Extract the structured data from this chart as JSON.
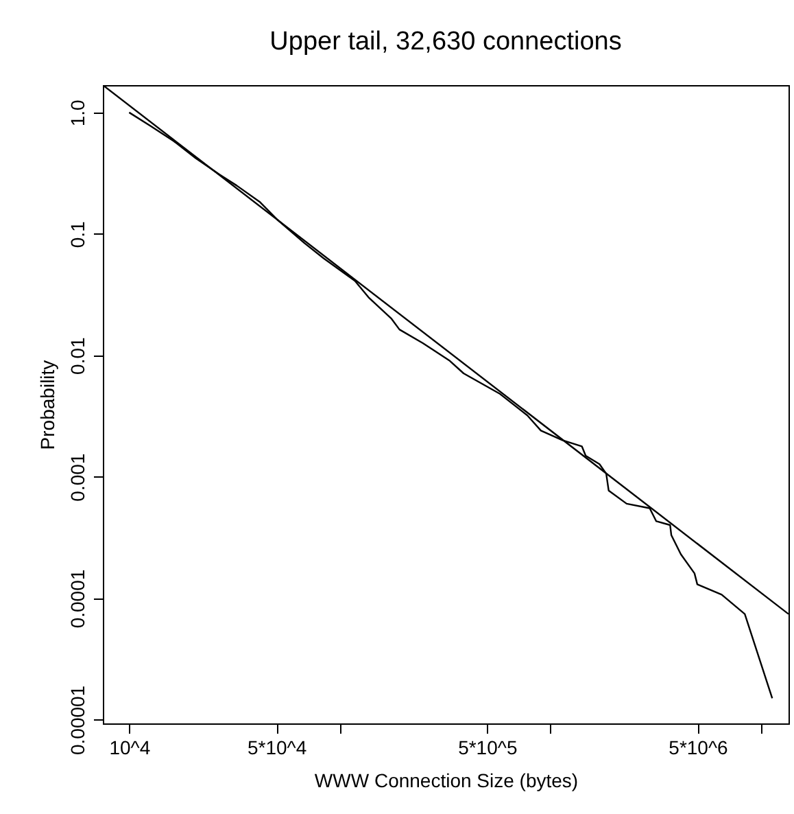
{
  "chart_data": {
    "type": "line",
    "title": "Upper tail, 32,630 connections",
    "xlabel": "WWW Connection Size (bytes)",
    "ylabel": "Probability",
    "log": "xy",
    "marker": "none",
    "line_style": "solid",
    "xlim": [
      7500,
      13500000
    ],
    "ylim": [
      9.3e-06,
      1.68
    ],
    "xticks": [
      {
        "value": 10000,
        "label": "10^4"
      },
      {
        "value": 50000,
        "label": "5*10^4"
      },
      {
        "value": 100000,
        "label": null
      },
      {
        "value": 500000,
        "label": "5*10^5"
      },
      {
        "value": 1000000,
        "label": null
      },
      {
        "value": 5000000,
        "label": "5*10^6"
      },
      {
        "value": 10000000,
        "label": null
      }
    ],
    "yticks": [
      {
        "value": 1,
        "label": "1.0"
      },
      {
        "value": 0.1,
        "label": "0.1"
      },
      {
        "value": 0.01,
        "label": "0.01"
      },
      {
        "value": 0.001,
        "label": "0.001"
      },
      {
        "value": 0.0001,
        "label": "0.0001"
      },
      {
        "value": 1e-05,
        "label": "0.00001"
      }
    ],
    "series": [
      {
        "color": "#000000",
        "x": [
          10000,
          12700,
          16300,
          20700,
          26700,
          32400,
          41600,
          50500,
          67900,
          83700,
          118000,
          137000,
          176000,
          192000,
          248000,
          333000,
          387000,
          577000,
          777000,
          901000,
          1140000,
          1410000,
          1470000,
          1710000,
          1840000,
          1890000,
          2300000,
          2960000,
          3180000,
          3700000,
          3750000,
          4160000,
          4830000,
          4980000,
          6500000,
          8370000,
          11300000
        ],
        "values": [
          1.0,
          0.77,
          0.58,
          0.42,
          0.31,
          0.25,
          0.184,
          0.131,
          0.084,
          0.063,
          0.041,
          0.03,
          0.02,
          0.0163,
          0.0126,
          0.009,
          0.0071,
          0.0048,
          0.0032,
          0.0024,
          0.002,
          0.00178,
          0.00149,
          0.00127,
          0.00106,
          0.00077,
          0.0006,
          0.00055,
          0.00043,
          0.0004,
          0.00033,
          0.00023,
          0.00016,
          0.00013,
          0.000107,
          7.4e-05,
          1.5e-05
        ]
      },
      {
        "type": "line",
        "color": "#000000",
        "x": [
          7500,
          13500000
        ],
        "values": [
          1.68,
          7.4e-05
        ]
      }
    ]
  }
}
